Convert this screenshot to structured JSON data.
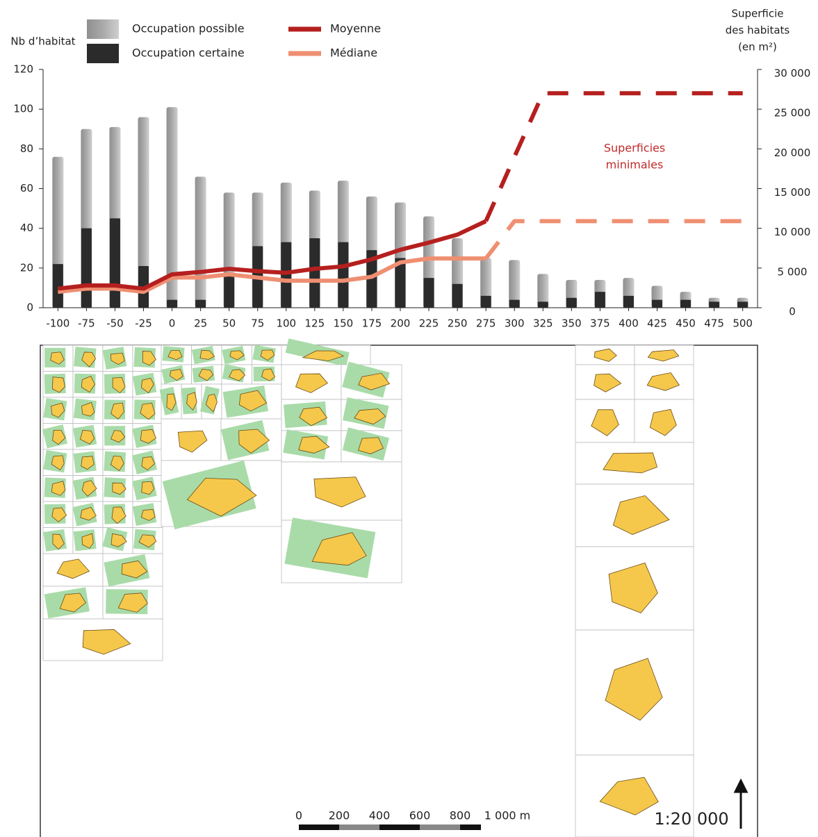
{
  "chart_data": {
    "type": "bar",
    "ylabel": "Nb d’habitat",
    "y2label": [
      "Superficie",
      "des habitats",
      "(en m²)"
    ],
    "annotation": [
      "Superficies",
      "minimales"
    ],
    "x": [
      -100,
      -75,
      -50,
      -25,
      0,
      25,
      50,
      75,
      100,
      125,
      150,
      175,
      200,
      225,
      250,
      275,
      300,
      325,
      350,
      375,
      400,
      425,
      450,
      475,
      500
    ],
    "xlim": [
      -113,
      513
    ],
    "xticks": [
      -100,
      -75,
      -50,
      -25,
      0,
      25,
      50,
      75,
      100,
      125,
      150,
      175,
      200,
      225,
      250,
      275,
      300,
      325,
      350,
      375,
      400,
      425,
      450,
      475,
      500
    ],
    "ylim": [
      0,
      120
    ],
    "yticks": [
      0,
      20,
      40,
      60,
      80,
      100,
      120
    ],
    "y2lim": [
      0,
      30000
    ],
    "y2ticks": [
      0,
      {
        "value": 5000,
        "label": "5 000"
      },
      {
        "value": 10000,
        "label": "10 000"
      },
      {
        "value": 15000,
        "label": "15 000"
      },
      {
        "value": 20000,
        "label": "20 000"
      },
      {
        "value": 25000,
        "label": "25 000"
      },
      {
        "value": 30000,
        "label": "30 000"
      }
    ],
    "series": [
      {
        "name": "Occupation possible",
        "color": "#a9a9a9",
        "values": [
          76,
          90,
          91,
          96,
          101,
          66,
          58,
          58,
          63,
          59,
          64,
          56,
          53,
          46,
          35,
          25,
          24,
          17,
          14,
          14,
          15,
          11,
          8,
          5,
          5
        ]
      },
      {
        "name": "Occupation certaine",
        "color": "#2b2b2b",
        "values": [
          22,
          40,
          45,
          21,
          4,
          4,
          17,
          31,
          33,
          35,
          33,
          29,
          25,
          15,
          12,
          6,
          4,
          3,
          5,
          8,
          6,
          4,
          4,
          3,
          3
        ]
      },
      {
        "name": "Moyenne",
        "color": "#b5201f",
        "axis": "y2",
        "type": "line",
        "dashed_from": 275,
        "values": [
          2400,
          2800,
          2800,
          2400,
          4200,
          4500,
          4900,
          4600,
          4400,
          4900,
          5200,
          6100,
          7300,
          8200,
          9200,
          10900,
          19000,
          27000,
          27000,
          27000,
          27000,
          27000,
          27000,
          27000,
          27000
        ]
      },
      {
        "name": "Médiane",
        "color": "#ef8f72",
        "axis": "y2",
        "type": "line",
        "dashed_from": 275,
        "values": [
          2000,
          2400,
          2400,
          2000,
          3800,
          3800,
          4200,
          3800,
          3400,
          3400,
          3400,
          3900,
          5700,
          6200,
          6200,
          6200,
          10900,
          10900,
          10900,
          10900,
          10900,
          10900,
          10900,
          10900,
          10900
        ]
      }
    ]
  },
  "map_panel": {
    "scale_labels": [
      "0",
      "200",
      "400",
      "600",
      "800",
      "1 000 m"
    ],
    "scale": "1:20 000"
  }
}
